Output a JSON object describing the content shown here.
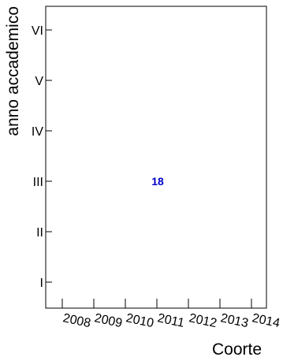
{
  "chart_data": {
    "type": "heatmap",
    "xlabel": "Coorte",
    "ylabel": "anno accademico",
    "x_categories": [
      "2008",
      "2009",
      "2010",
      "2011",
      "2012",
      "2013",
      "2014"
    ],
    "y_categories": [
      "I",
      "II",
      "III",
      "IV",
      "V",
      "VI"
    ],
    "cells": [
      {
        "x": "2011",
        "y": "III",
        "value": 18
      }
    ],
    "label_color": "#0000cc",
    "grid": false
  }
}
